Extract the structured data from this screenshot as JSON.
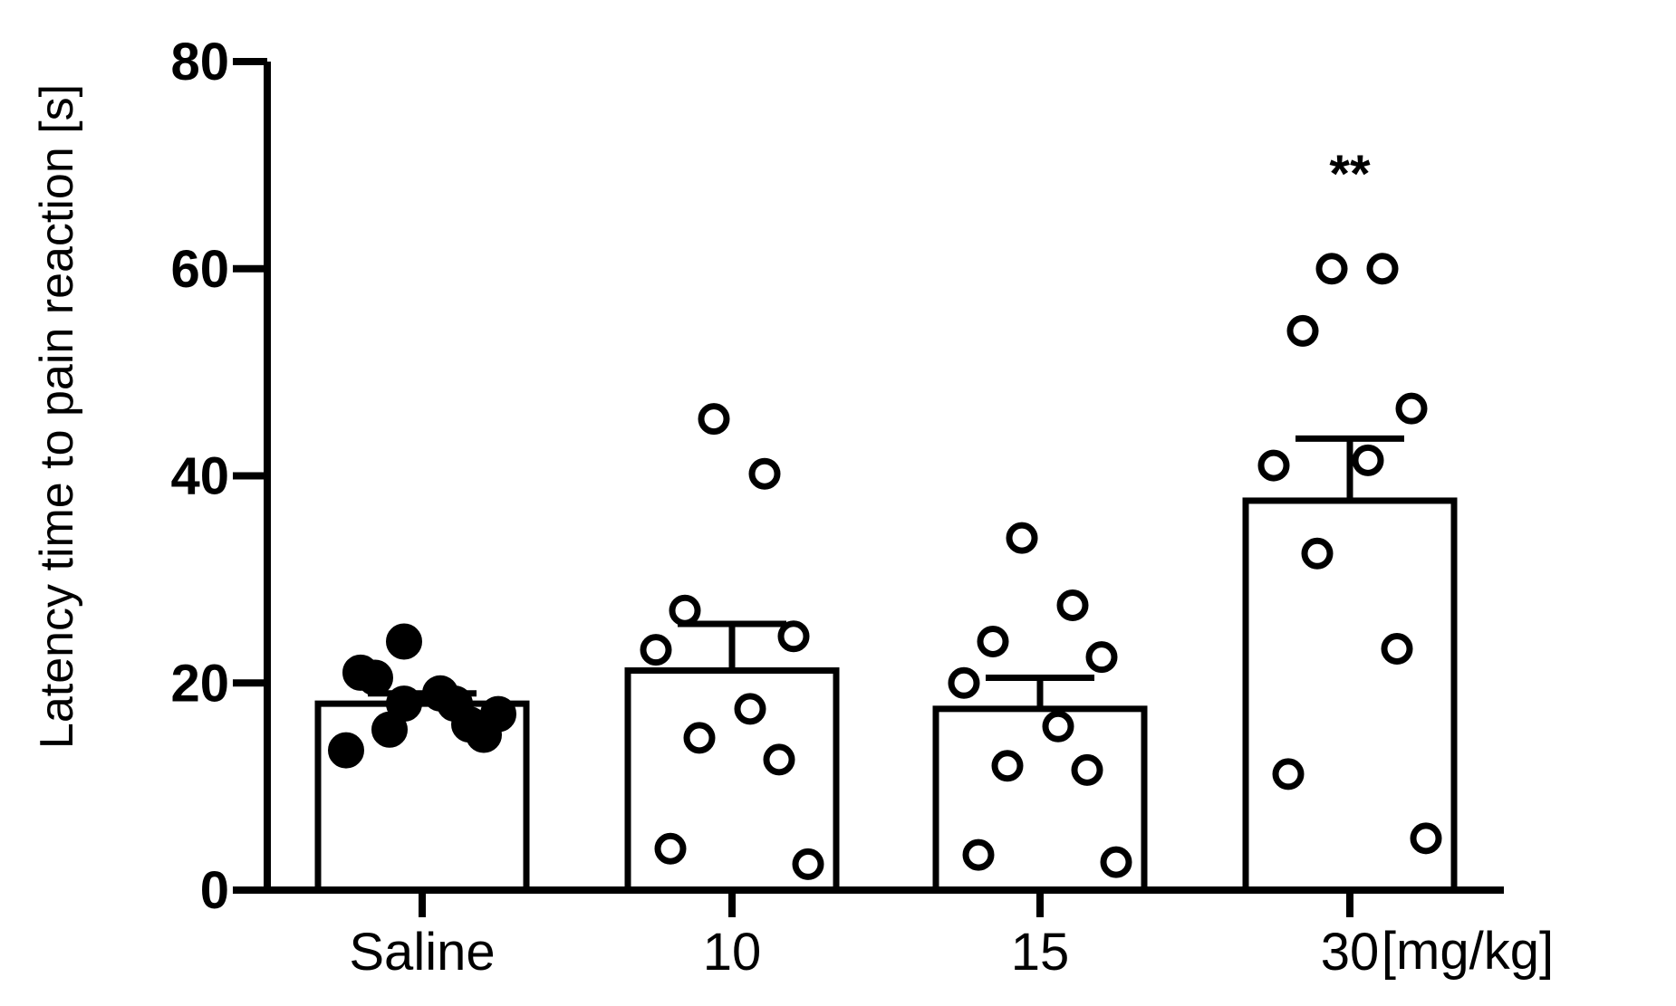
{
  "chart_data": {
    "type": "bar",
    "ylabel": "Latency time to pain reaction [s]",
    "x_unit": "[mg/kg]",
    "ylim": [
      0,
      80
    ],
    "yticks": [
      0,
      20,
      40,
      60,
      80
    ],
    "categories": [
      "Saline",
      "10",
      "15",
      "30"
    ],
    "means": [
      18.0,
      21.2,
      17.5,
      37.6
    ],
    "sem": [
      1.0,
      4.5,
      3.0,
      6.0
    ],
    "significance": [
      "",
      "",
      "",
      "**"
    ],
    "points": [
      {
        "filled": true,
        "values": [
          24.0,
          18.0,
          20.5,
          15.0,
          13.5,
          19.0,
          15.5,
          16.0,
          21.0,
          17.0,
          18.0
        ]
      },
      {
        "filled": false,
        "values": [
          45.5,
          40.2,
          27.0,
          24.5,
          23.2,
          17.5,
          14.7,
          12.6,
          4.0,
          2.5
        ]
      },
      {
        "filled": false,
        "values": [
          34.0,
          27.5,
          24.0,
          22.5,
          20.0,
          15.8,
          12.0,
          11.6,
          3.4,
          2.7
        ]
      },
      {
        "filled": false,
        "values": [
          60.0,
          60.0,
          54.0,
          46.5,
          41.0,
          41.5,
          32.5,
          23.3,
          11.2,
          5.0
        ]
      }
    ],
    "colors": {
      "bar_fill": "#ffffff",
      "stroke": "#000000"
    }
  }
}
